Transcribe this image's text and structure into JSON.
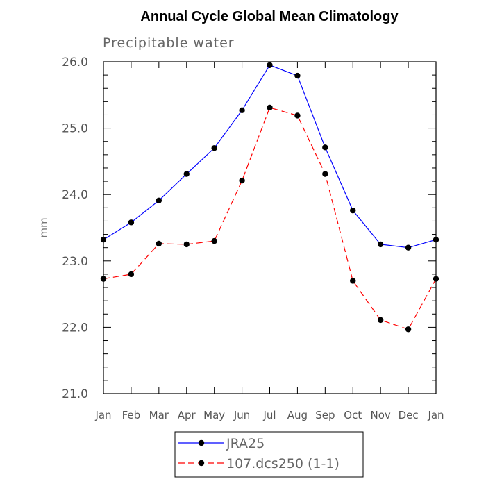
{
  "chart_data": {
    "type": "line",
    "title": "Annual Cycle Global Mean Climatology",
    "subtitle": "Precipitable water",
    "xlabel": "",
    "ylabel": "mm",
    "categories": [
      "Jan",
      "Feb",
      "Mar",
      "Apr",
      "May",
      "Jun",
      "Jul",
      "Aug",
      "Sep",
      "Oct",
      "Nov",
      "Dec",
      "Jan"
    ],
    "yticks": [
      "21.0",
      "22.0",
      "23.0",
      "24.0",
      "25.0",
      "26.0"
    ],
    "ylim": [
      21.0,
      26.0
    ],
    "grid": false,
    "legend_position": "bottom-center",
    "series": [
      {
        "name": "JRA25",
        "color": "#0000ff",
        "dash": "solid",
        "marker": "circle",
        "values": [
          23.32,
          23.58,
          23.91,
          24.31,
          24.7,
          25.27,
          25.95,
          25.79,
          24.71,
          23.76,
          23.25,
          23.2,
          23.32
        ]
      },
      {
        "name": "107.dcs250 (1-1)",
        "color": "#ff0000",
        "dash": "dashed",
        "marker": "circle",
        "values": [
          22.73,
          22.8,
          23.26,
          23.25,
          23.3,
          24.21,
          25.31,
          25.19,
          24.31,
          22.7,
          22.11,
          21.97,
          22.73
        ]
      }
    ]
  }
}
